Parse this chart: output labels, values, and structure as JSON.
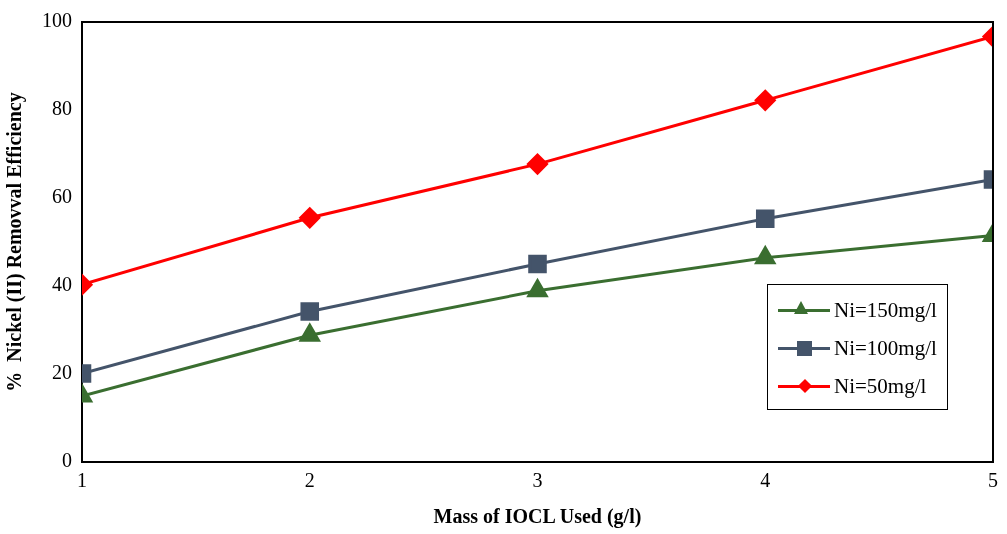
{
  "chart_data": {
    "type": "line",
    "xlabel": "Mass of IOCL Used (g/l)",
    "ylabel": "%  Nickel (II) Removval Efficiency",
    "x": [
      1,
      2,
      3,
      4,
      5
    ],
    "xlim": [
      1,
      5
    ],
    "xticks": [
      1,
      2,
      3,
      4,
      5
    ],
    "ylim": [
      0,
      100
    ],
    "yticks": [
      0,
      20,
      40,
      60,
      80,
      100
    ],
    "grid": false,
    "legend": "bottom right",
    "line_style": "solid",
    "series": [
      {
        "name": "Ni=150mg/l",
        "color": "#3a6e30",
        "marker": "triangle",
        "values": [
          15,
          28.8,
          38.9,
          46.4,
          51.5
        ]
      },
      {
        "name": "Ni=100mg/l",
        "color": "#44546a",
        "marker": "square",
        "values": [
          20.1,
          34.2,
          45,
          55.3,
          64.2
        ]
      },
      {
        "name": "Ni=50mg/l",
        "color": "#ff0000",
        "marker": "diamond",
        "values": [
          40.3,
          55.5,
          67.7,
          82.2,
          96.7
        ]
      }
    ]
  }
}
